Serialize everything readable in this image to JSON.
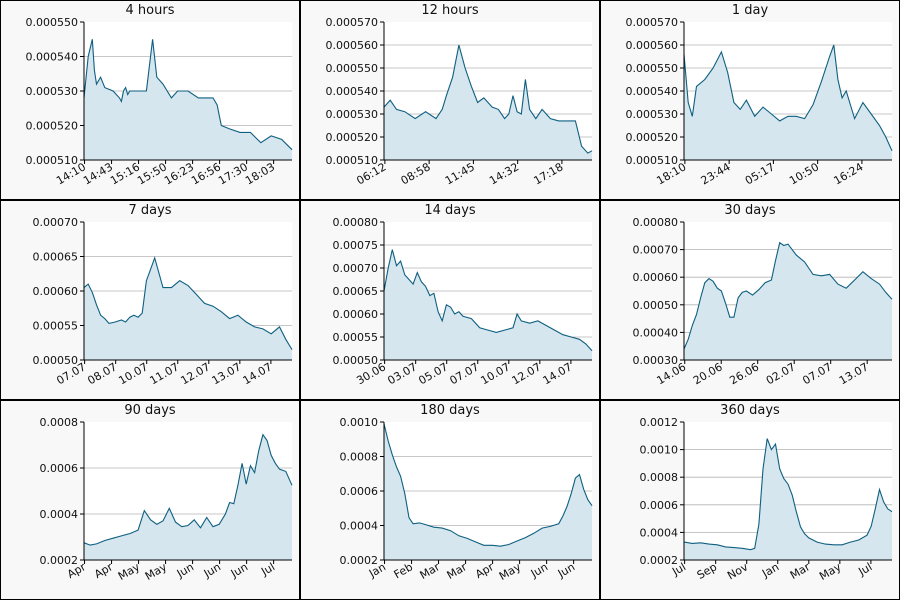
{
  "colors": {
    "line": "#0e5f80",
    "fill": "#d5e6ee",
    "grid": "#b4b4b4",
    "panel_bg": "#f8f8f8",
    "plot_bg": "#ffffff",
    "border": "#000000"
  },
  "chart_data": [
    {
      "type": "area",
      "title": "4 hours",
      "ylim": [
        0.00051,
        0.00055
      ],
      "yticks": [
        "0.000510",
        "0.000520",
        "0.000530",
        "0.000540",
        "0.000550"
      ],
      "xticks": [
        "14:10",
        "14:43",
        "15:16",
        "15:50",
        "16:23",
        "16:56",
        "17:30",
        "18:03"
      ],
      "series": [
        {
          "x": [
            0,
            2,
            4,
            5,
            6,
            8,
            10,
            14,
            17,
            18,
            19,
            20,
            21,
            22,
            25,
            30,
            33,
            35,
            38,
            40,
            42,
            45,
            50,
            55,
            60,
            62,
            64,
            66,
            70,
            75,
            80,
            85,
            90,
            95,
            100
          ],
          "values": [
            0.000528,
            0.00054,
            0.000545,
            0.000536,
            0.000532,
            0.000534,
            0.000531,
            0.00053,
            0.000528,
            0.000527,
            0.00053,
            0.000531,
            0.000529,
            0.00053,
            0.00053,
            0.00053,
            0.000545,
            0.000534,
            0.000532,
            0.00053,
            0.000528,
            0.00053,
            0.00053,
            0.000528,
            0.000528,
            0.000528,
            0.000526,
            0.00052,
            0.000519,
            0.000518,
            0.000518,
            0.000515,
            0.000517,
            0.000516,
            0.000513
          ]
        }
      ]
    },
    {
      "type": "area",
      "title": "12 hours",
      "ylim": [
        0.00051,
        0.00057
      ],
      "yticks": [
        "0.000510",
        "0.000520",
        "0.000530",
        "0.000540",
        "0.000550",
        "0.000560",
        "0.000570"
      ],
      "xticks": [
        "06:12",
        "08:58",
        "11:45",
        "14:32",
        "17:18"
      ],
      "series": [
        {
          "x": [
            0,
            3,
            6,
            10,
            15,
            20,
            25,
            28,
            30,
            33,
            36,
            39,
            42,
            45,
            48,
            50,
            52,
            55,
            58,
            60,
            62,
            64,
            66,
            68,
            70,
            73,
            76,
            80,
            84,
            88,
            92,
            95,
            98,
            100
          ],
          "values": [
            0.000533,
            0.000536,
            0.000532,
            0.000531,
            0.000528,
            0.000531,
            0.000528,
            0.000532,
            0.000538,
            0.000546,
            0.00056,
            0.00055,
            0.000542,
            0.000535,
            0.000537,
            0.000535,
            0.000533,
            0.000532,
            0.000528,
            0.00053,
            0.000538,
            0.000531,
            0.00053,
            0.000545,
            0.000532,
            0.000528,
            0.000532,
            0.000528,
            0.000527,
            0.000527,
            0.000527,
            0.000516,
            0.000513,
            0.000514
          ]
        }
      ]
    },
    {
      "type": "area",
      "title": "1 day",
      "ylim": [
        0.00051,
        0.00057
      ],
      "yticks": [
        "0.000510",
        "0.000520",
        "0.000530",
        "0.000540",
        "0.000550",
        "0.000560",
        "0.000570"
      ],
      "xticks": [
        "18:10",
        "23:44",
        "05:17",
        "10:50",
        "16:24"
      ],
      "series": [
        {
          "x": [
            0,
            2,
            4,
            6,
            10,
            14,
            18,
            21,
            24,
            27,
            30,
            34,
            38,
            42,
            46,
            50,
            54,
            58,
            62,
            66,
            70,
            72,
            74,
            76,
            78,
            82,
            86,
            90,
            94,
            97,
            100
          ],
          "values": [
            0.000556,
            0.000535,
            0.000529,
            0.000542,
            0.000545,
            0.00055,
            0.000557,
            0.000548,
            0.000535,
            0.000532,
            0.000536,
            0.000529,
            0.000533,
            0.00053,
            0.000527,
            0.000529,
            0.000529,
            0.000528,
            0.000534,
            0.000544,
            0.000555,
            0.00056,
            0.000545,
            0.000537,
            0.00054,
            0.000528,
            0.000535,
            0.00053,
            0.000525,
            0.00052,
            0.000514
          ]
        }
      ]
    },
    {
      "type": "area",
      "title": "7 days",
      "ylim": [
        0.0005,
        0.0007
      ],
      "yticks": [
        "0.00050",
        "0.00055",
        "0.00060",
        "0.00065",
        "0.00070"
      ],
      "xticks": [
        "07.07",
        "08.07",
        "10.07",
        "11.07",
        "12.07",
        "13.07",
        "14.07"
      ],
      "series": [
        {
          "x": [
            0,
            2,
            4,
            6,
            8,
            10,
            12,
            15,
            18,
            20,
            22,
            24,
            26,
            28,
            30,
            34,
            38,
            42,
            46,
            50,
            54,
            58,
            62,
            66,
            70,
            74,
            78,
            82,
            86,
            90,
            94,
            97,
            100
          ],
          "values": [
            0.000605,
            0.00061,
            0.000598,
            0.00058,
            0.000565,
            0.00056,
            0.000553,
            0.000555,
            0.000558,
            0.000555,
            0.000562,
            0.000565,
            0.000562,
            0.000568,
            0.000615,
            0.000648,
            0.000605,
            0.000605,
            0.000615,
            0.000608,
            0.000595,
            0.000582,
            0.000578,
            0.00057,
            0.00056,
            0.000565,
            0.000555,
            0.000548,
            0.000545,
            0.000538,
            0.000548,
            0.00053,
            0.000515
          ]
        }
      ]
    },
    {
      "type": "area",
      "title": "14 days",
      "ylim": [
        0.0005,
        0.0008
      ],
      "yticks": [
        "0.00050",
        "0.00055",
        "0.00060",
        "0.00065",
        "0.00070",
        "0.00075",
        "0.00080"
      ],
      "xticks": [
        "30.06",
        "03.07",
        "05.07",
        "07.07",
        "10.07",
        "12.07",
        "14.07"
      ],
      "series": [
        {
          "x": [
            0,
            2,
            4,
            6,
            8,
            10,
            12,
            14,
            16,
            18,
            20,
            22,
            24,
            26,
            28,
            30,
            32,
            34,
            36,
            38,
            42,
            46,
            50,
            54,
            58,
            62,
            64,
            66,
            70,
            74,
            78,
            82,
            86,
            90,
            94,
            97,
            100
          ],
          "values": [
            0.00065,
            0.0007,
            0.00074,
            0.000705,
            0.000715,
            0.000685,
            0.000675,
            0.000665,
            0.00069,
            0.00067,
            0.00066,
            0.00064,
            0.000645,
            0.000605,
            0.000585,
            0.00062,
            0.000615,
            0.0006,
            0.000605,
            0.000595,
            0.00059,
            0.00057,
            0.000565,
            0.00056,
            0.000565,
            0.00057,
            0.0006,
            0.000585,
            0.00058,
            0.000585,
            0.000575,
            0.000565,
            0.000555,
            0.00055,
            0.000545,
            0.000535,
            0.00052
          ]
        }
      ]
    },
    {
      "type": "area",
      "title": "30 days",
      "ylim": [
        0.0003,
        0.0008
      ],
      "yticks": [
        "0.00030",
        "0.00040",
        "0.00050",
        "0.00060",
        "0.00070",
        "0.00080"
      ],
      "xticks": [
        "14.06",
        "20.06",
        "26.06",
        "02.07",
        "07.07",
        "13.07"
      ],
      "series": [
        {
          "x": [
            0,
            2,
            4,
            6,
            8,
            10,
            12,
            14,
            16,
            18,
            20,
            22,
            24,
            26,
            28,
            30,
            33,
            36,
            39,
            42,
            44,
            46,
            48,
            50,
            54,
            58,
            62,
            66,
            70,
            74,
            78,
            82,
            86,
            90,
            94,
            97,
            100
          ],
          "values": [
            0.00034,
            0.000375,
            0.000425,
            0.000465,
            0.000525,
            0.00058,
            0.000595,
            0.000585,
            0.00056,
            0.00055,
            0.000505,
            0.000455,
            0.000455,
            0.000525,
            0.000545,
            0.00055,
            0.000535,
            0.000555,
            0.00058,
            0.00059,
            0.00066,
            0.000725,
            0.000715,
            0.00072,
            0.00068,
            0.000655,
            0.00061,
            0.000605,
            0.00061,
            0.000575,
            0.00056,
            0.00059,
            0.00062,
            0.000595,
            0.000575,
            0.000545,
            0.00052
          ]
        }
      ]
    },
    {
      "type": "area",
      "title": "90 days",
      "ylim": [
        0.0002,
        0.0008
      ],
      "yticks": [
        "0.0002",
        "0.0004",
        "0.0006",
        "0.0008"
      ],
      "xticks": [
        "Apr",
        "Apr",
        "May",
        "May",
        "Jun",
        "Jun",
        "Jun",
        "Jul"
      ],
      "series": [
        {
          "x": [
            0,
            3,
            6,
            10,
            14,
            18,
            22,
            26,
            29,
            32,
            35,
            38,
            41,
            44,
            47,
            50,
            53,
            56,
            59,
            62,
            65,
            68,
            70,
            72,
            74,
            76,
            78,
            80,
            82,
            84,
            86,
            88,
            90,
            92,
            94,
            97,
            100
          ],
          "values": [
            0.000275,
            0.000265,
            0.00027,
            0.000285,
            0.000295,
            0.000305,
            0.000315,
            0.00033,
            0.000415,
            0.000375,
            0.000355,
            0.00037,
            0.000425,
            0.000365,
            0.000345,
            0.00035,
            0.000375,
            0.00034,
            0.000385,
            0.000345,
            0.000355,
            0.0004,
            0.00045,
            0.000445,
            0.000525,
            0.00062,
            0.00053,
            0.00061,
            0.00058,
            0.000675,
            0.000745,
            0.00072,
            0.000655,
            0.00062,
            0.000595,
            0.000585,
            0.000525
          ]
        }
      ]
    },
    {
      "type": "area",
      "title": "180 days",
      "ylim": [
        0.0002,
        0.001
      ],
      "yticks": [
        "0.0002",
        "0.0004",
        "0.0006",
        "0.0008",
        "0.0010"
      ],
      "xticks": [
        "Jan",
        "Feb",
        "Mar",
        "Mar",
        "Apr",
        "May",
        "Jun",
        "Jun"
      ],
      "series": [
        {
          "x": [
            0,
            2,
            4,
            6,
            8,
            10,
            12,
            14,
            17,
            20,
            24,
            28,
            32,
            36,
            40,
            44,
            48,
            52,
            56,
            60,
            64,
            68,
            72,
            76,
            80,
            84,
            86,
            88,
            90,
            92,
            94,
            96,
            98,
            100
          ],
          "values": [
            0.00099,
            0.00089,
            0.00081,
            0.00074,
            0.000685,
            0.000585,
            0.000445,
            0.00041,
            0.000415,
            0.000405,
            0.00039,
            0.000385,
            0.00037,
            0.00034,
            0.000325,
            0.000305,
            0.000285,
            0.000285,
            0.00028,
            0.00029,
            0.00031,
            0.00033,
            0.000355,
            0.000385,
            0.000395,
            0.00041,
            0.000455,
            0.00051,
            0.000585,
            0.000675,
            0.000695,
            0.00061,
            0.00055,
            0.000515
          ]
        }
      ]
    },
    {
      "type": "area",
      "title": "360 days",
      "ylim": [
        0.0002,
        0.0012
      ],
      "yticks": [
        "0.0002",
        "0.0004",
        "0.0006",
        "0.0008",
        "0.0010",
        "0.0012"
      ],
      "xticks": [
        "Jul",
        "Sep",
        "Nov",
        "Jan",
        "Mar",
        "May",
        "Jul"
      ],
      "series": [
        {
          "x": [
            0,
            4,
            8,
            12,
            16,
            20,
            24,
            28,
            32,
            34,
            36,
            38,
            40,
            42,
            44,
            46,
            48,
            50,
            52,
            54,
            56,
            58,
            60,
            64,
            68,
            72,
            76,
            80,
            84,
            88,
            90,
            92,
            94,
            96,
            98,
            100
          ],
          "values": [
            0.00033,
            0.00032,
            0.000325,
            0.000315,
            0.00031,
            0.000295,
            0.00029,
            0.000285,
            0.000275,
            0.000285,
            0.00046,
            0.00086,
            0.00108,
            0.001,
            0.00104,
            0.00086,
            0.00079,
            0.00075,
            0.00067,
            0.00055,
            0.00044,
            0.00039,
            0.00036,
            0.00033,
            0.000315,
            0.00031,
            0.00031,
            0.00033,
            0.000345,
            0.00038,
            0.000445,
            0.000575,
            0.00071,
            0.00062,
            0.00057,
            0.00055
          ]
        }
      ]
    }
  ]
}
